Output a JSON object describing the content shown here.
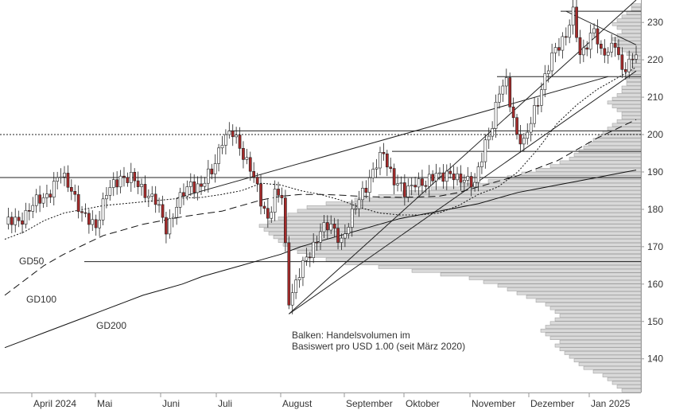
{
  "chart_data": {
    "type": "candlestick",
    "title": "",
    "xlabel": "",
    "ylabel": "",
    "ylim": [
      131,
      236
    ],
    "y_ticks": [
      140,
      150,
      160,
      170,
      180,
      190,
      200,
      210,
      220,
      230
    ],
    "x_month_labels": [
      "April 2024",
      "Mai",
      "Juni",
      "Juli",
      "August",
      "September",
      "Oktober",
      "November",
      "Dezember",
      "Jan 2025"
    ],
    "colors": {
      "up": "#ffffff",
      "down": "#a52a2a",
      "wick": "#222222",
      "volume": "#d9d9d9",
      "volume_edge": "#9a9a9a"
    },
    "moving_averages": [
      {
        "name": "GD50",
        "style": "dotted",
        "values": [
          172,
          174,
          177,
          179,
          180,
          181,
          181.5,
          182,
          182.5,
          183,
          183.2,
          184,
          185,
          187,
          186.5,
          185,
          184,
          182.5,
          180.5,
          179,
          178.5,
          178.5,
          179,
          181,
          184,
          186,
          190,
          196,
          203,
          208,
          212,
          215,
          218
        ]
      },
      {
        "name": "GD100",
        "style": "dashed",
        "values": [
          157,
          161,
          165,
          168,
          170.5,
          173,
          174.5,
          176,
          177,
          178,
          178.8,
          179.5,
          181,
          182.5,
          183.5,
          184,
          184,
          183.8,
          183.5,
          183.3,
          183.2,
          183.3,
          183.5,
          184.5,
          186,
          187.5,
          189,
          191,
          193,
          196,
          199,
          201.5,
          204
        ]
      },
      {
        "name": "GD200",
        "style": "solid",
        "values": [
          143,
          145,
          147,
          149,
          151,
          153,
          155,
          157,
          158.5,
          160,
          162,
          163.5,
          165,
          166.5,
          168,
          170,
          171.5,
          173,
          174.5,
          176,
          177.5,
          178.5,
          179.5,
          180.5,
          181.5,
          183,
          184.5,
          185.5,
          186.5,
          187.5,
          188.5,
          189.5,
          190.5
        ]
      }
    ],
    "horizontal_levels": [
      {
        "y": 233,
        "style": "solid"
      },
      {
        "y": 215.5,
        "style": "solid"
      },
      {
        "y": 201,
        "style": "solid"
      },
      {
        "y": 200,
        "style": "dotted"
      },
      {
        "y": 195.5,
        "style": "solid"
      },
      {
        "y": 188.5,
        "style": "solid"
      },
      {
        "y": 166,
        "style": "solid"
      }
    ],
    "trend_lines": [
      {
        "from": [
          81,
          152
        ],
        "to": [
          180,
          236
        ]
      },
      {
        "from": [
          81,
          152
        ],
        "to": [
          180,
          217
        ]
      },
      {
        "from": [
          49,
          183
        ],
        "to": [
          172,
          215.5
        ]
      },
      {
        "from": [
          160,
          233
        ],
        "to": [
          180,
          224
        ]
      }
    ],
    "volume_profile": {
      "bin_size": 1,
      "from": 131,
      "to": 235,
      "relative_widths": [
        0.04,
        0.05,
        0.06,
        0.07,
        0.08,
        0.1,
        0.12,
        0.13,
        0.14,
        0.15,
        0.16,
        0.17,
        0.18,
        0.17,
        0.19,
        0.2,
        0.21,
        0.2,
        0.19,
        0.18,
        0.17,
        0.18,
        0.19,
        0.2,
        0.22,
        0.24,
        0.26,
        0.28,
        0.3,
        0.33,
        0.36,
        0.42,
        0.48,
        0.55,
        0.62,
        0.66,
        0.7,
        0.72,
        0.74,
        0.75,
        0.76,
        0.77,
        0.78,
        0.79,
        0.8,
        0.78,
        0.76,
        0.74,
        0.72,
        0.7,
        0.66,
        0.6,
        0.55,
        0.5,
        0.44,
        0.38,
        0.32,
        0.28,
        0.25,
        0.22,
        0.19,
        0.17,
        0.15,
        0.14,
        0.13,
        0.12,
        0.11,
        0.1,
        0.09,
        0.08,
        0.07,
        0.06,
        0.05,
        0.04,
        0.04,
        0.05,
        0.06,
        0.07,
        0.06,
        0.05,
        0.04,
        0.04,
        0.03,
        0.03,
        0.03,
        0.02,
        0.02,
        0.02,
        0.02,
        0.02,
        0.03,
        0.04,
        0.05,
        0.05,
        0.06,
        0.05,
        0.04,
        0.05,
        0.06,
        0.05,
        0.04,
        0.03,
        0.02,
        0.02
      ]
    },
    "annotations": [
      {
        "text": "GD50"
      },
      {
        "text": "GD100"
      },
      {
        "text": "GD200"
      },
      {
        "text": "Balken: Handelsvolumen im"
      },
      {
        "text": "Basiswert pro USD 1.00 (seit März 2020)"
      }
    ]
  }
}
